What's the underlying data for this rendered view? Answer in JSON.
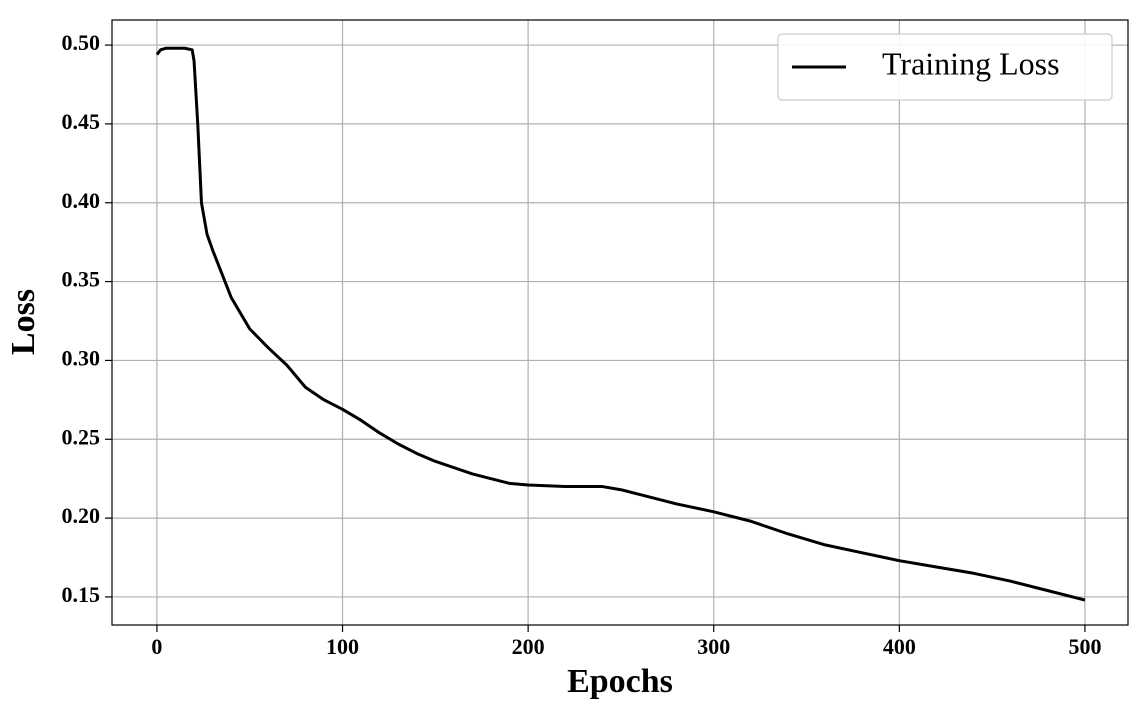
{
  "chart_data": {
    "type": "line",
    "x_label": "Epochs",
    "y_label": "Loss",
    "x": [
      0,
      2,
      5,
      10,
      15,
      19,
      20,
      22,
      24,
      27,
      30,
      40,
      50,
      60,
      70,
      80,
      90,
      100,
      110,
      120,
      130,
      140,
      150,
      160,
      170,
      180,
      190,
      200,
      220,
      240,
      250,
      260,
      280,
      300,
      320,
      340,
      360,
      380,
      400,
      420,
      440,
      460,
      480,
      500
    ],
    "series": [
      {
        "name": "Training Loss",
        "color": "#000000",
        "values": [
          0.494,
          0.497,
          0.498,
          0.498,
          0.498,
          0.497,
          0.49,
          0.45,
          0.4,
          0.38,
          0.37,
          0.34,
          0.32,
          0.308,
          0.297,
          0.283,
          0.275,
          0.269,
          0.262,
          0.254,
          0.247,
          0.241,
          0.236,
          0.232,
          0.228,
          0.225,
          0.222,
          0.221,
          0.22,
          0.22,
          0.218,
          0.215,
          0.209,
          0.204,
          0.198,
          0.19,
          0.183,
          0.178,
          0.173,
          0.169,
          0.165,
          0.16,
          0.154,
          0.148
        ]
      }
    ],
    "xlim": [
      -24.2,
      523.2
    ],
    "ylim": [
      0.1322,
      0.5159
    ],
    "xticks": [
      0,
      100,
      200,
      300,
      400,
      500
    ],
    "yticks": [
      0.15,
      {
        "value": 0.2,
        "label": "0.20"
      },
      0.25,
      {
        "value": 0.3,
        "label": "0.30"
      },
      0.35,
      {
        "value": 0.4,
        "label": "0.40"
      },
      0.45,
      {
        "value": 0.5,
        "label": "0.50"
      }
    ],
    "grid": true,
    "legend": "upper right"
  }
}
